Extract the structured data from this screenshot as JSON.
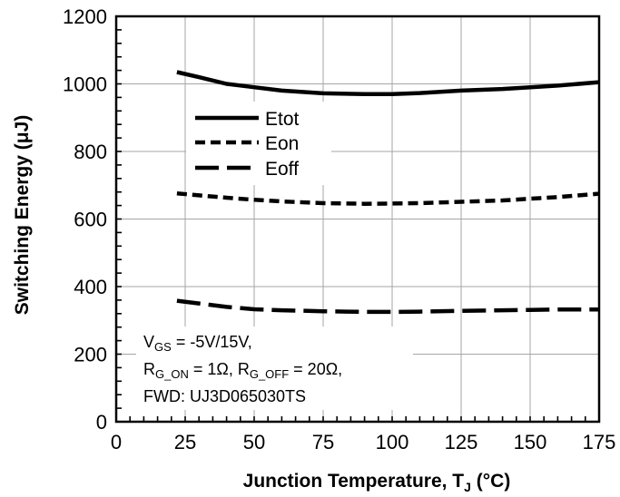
{
  "chart_data": {
    "type": "line",
    "xlabel": "Junction Temperature, T",
    "xlabel_sub": "J",
    "xlabel_unit": " (°C)",
    "ylabel": "Switching Energy (μJ)",
    "xlim": [
      0,
      175
    ],
    "ylim": [
      0,
      1200
    ],
    "x_ticks": [
      0,
      25,
      50,
      75,
      100,
      125,
      150,
      175
    ],
    "y_ticks": [
      0,
      200,
      400,
      600,
      800,
      1000,
      1200
    ],
    "grid": true,
    "legend_position": "upper-left",
    "series": [
      {
        "name": "Etot",
        "style": "solid",
        "x": [
          22,
          30,
          40,
          50,
          60,
          75,
          90,
          100,
          110,
          125,
          140,
          150,
          160,
          175
        ],
        "y": [
          1035,
          1020,
          1000,
          990,
          980,
          972,
          970,
          970,
          973,
          980,
          985,
          990,
          995,
          1005
        ]
      },
      {
        "name": "Eon",
        "style": "dashed",
        "x": [
          22,
          30,
          40,
          50,
          60,
          75,
          90,
          100,
          110,
          125,
          140,
          150,
          160,
          175
        ],
        "y": [
          676,
          670,
          663,
          657,
          652,
          647,
          645,
          646,
          647,
          651,
          655,
          660,
          665,
          675
        ]
      },
      {
        "name": "Eoff",
        "style": "long-dash",
        "x": [
          22,
          30,
          40,
          50,
          60,
          75,
          90,
          100,
          110,
          125,
          140,
          150,
          160,
          175
        ],
        "y": [
          358,
          350,
          340,
          333,
          330,
          327,
          325,
          325,
          326,
          328,
          330,
          331,
          332,
          332
        ]
      }
    ],
    "annotation": {
      "line1": {
        "main": "V",
        "sub": "GS",
        "rest": " = -5V/15V,"
      },
      "line2": {
        "a_main": "R",
        "a_sub": "G_ON",
        "a_rest": " = 1Ω, ",
        "b_main": "R",
        "b_sub": "G_OFF",
        "b_rest": " = 20Ω,"
      },
      "line3": "FWD: UJ3D065030TS"
    }
  }
}
